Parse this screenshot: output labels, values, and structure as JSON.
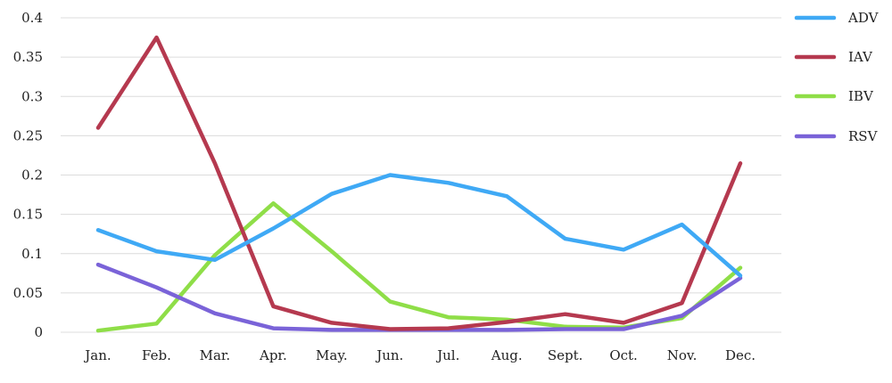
{
  "chart_data": {
    "type": "line",
    "title": "",
    "xlabel": "",
    "ylabel": "",
    "categories": [
      "Jan.",
      "Feb.",
      "Mar.",
      "Apr.",
      "May.",
      "Jun.",
      "Jul.",
      "Aug.",
      "Sept.",
      "Oct.",
      "Nov.",
      "Dec."
    ],
    "ylim": [
      0,
      0.4
    ],
    "yticks": [
      0,
      0.05,
      0.1,
      0.15,
      0.2,
      0.25,
      0.3,
      0.35,
      0.4
    ],
    "ytick_labels": [
      "0",
      "0.05",
      "0.1",
      "0.15",
      "0.2",
      "0.25",
      "0.3",
      "0.35",
      "0.4"
    ],
    "grid": true,
    "legend_position": "right",
    "series": [
      {
        "name": "ADV",
        "color": "#3fa9f5",
        "values": [
          0.13,
          0.103,
          0.092,
          0.132,
          0.176,
          0.2,
          0.19,
          0.173,
          0.119,
          0.105,
          0.137,
          0.072
        ]
      },
      {
        "name": "IAV",
        "color": "#b5394f",
        "values": [
          0.26,
          0.375,
          0.215,
          0.033,
          0.012,
          0.004,
          0.005,
          0.013,
          0.023,
          0.012,
          0.037,
          0.215
        ]
      },
      {
        "name": "IBV",
        "color": "#8fde48",
        "values": [
          0.002,
          0.011,
          0.098,
          0.164,
          0.103,
          0.039,
          0.019,
          0.016,
          0.007,
          0.006,
          0.018,
          0.082
        ]
      },
      {
        "name": "RSV",
        "color": "#7a63d8",
        "values": [
          0.086,
          0.057,
          0.024,
          0.005,
          0.003,
          0.003,
          0.003,
          0.003,
          0.004,
          0.004,
          0.021,
          0.069
        ]
      }
    ]
  }
}
